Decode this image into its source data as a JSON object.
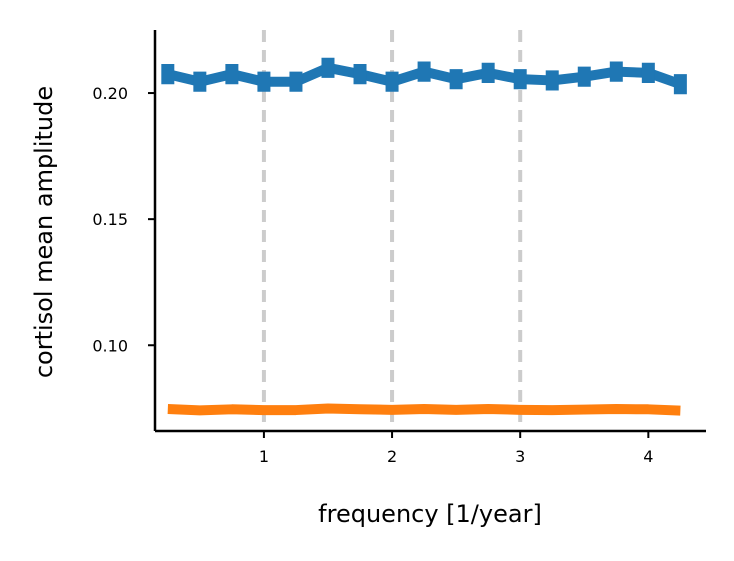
{
  "chart_data": {
    "type": "line",
    "title": "",
    "xlabel": "frequency [1/year]",
    "ylabel": "cortisol mean amplitude",
    "xlim": [
      0.15,
      4.45
    ],
    "ylim": [
      0.066,
      0.225
    ],
    "xticks": [
      1,
      2,
      3,
      4
    ],
    "xtick_labels": [
      "1",
      "2",
      "3",
      "4"
    ],
    "yticks": [
      0.1,
      0.15,
      0.2
    ],
    "ytick_labels": [
      "0.10",
      "0.15",
      "0.20"
    ],
    "vlines": [
      1,
      2,
      3
    ],
    "grid": false,
    "legend": false,
    "x": [
      0.25,
      0.5,
      0.75,
      1.0,
      1.25,
      1.5,
      1.75,
      2.0,
      2.25,
      2.5,
      2.75,
      3.0,
      3.25,
      3.5,
      3.75,
      4.0,
      4.25
    ],
    "series": [
      {
        "color": "#1f77b4",
        "error_bars": true,
        "values": [
          0.2075,
          0.2045,
          0.2075,
          0.2045,
          0.2045,
          0.21,
          0.2075,
          0.2045,
          0.2085,
          0.2055,
          0.208,
          0.2055,
          0.205,
          0.2065,
          0.2085,
          0.208,
          0.2035
        ],
        "errors": [
          0.004,
          0.004,
          0.004,
          0.004,
          0.004,
          0.004,
          0.004,
          0.004,
          0.004,
          0.004,
          0.004,
          0.004,
          0.004,
          0.004,
          0.004,
          0.004,
          0.004
        ]
      },
      {
        "color": "#ff7f0e",
        "error_bars": false,
        "values": [
          0.0747,
          0.0742,
          0.0746,
          0.0743,
          0.0743,
          0.0749,
          0.0746,
          0.0744,
          0.0747,
          0.0744,
          0.0747,
          0.0744,
          0.0743,
          0.0745,
          0.0747,
          0.0746,
          0.0741
        ]
      }
    ]
  }
}
